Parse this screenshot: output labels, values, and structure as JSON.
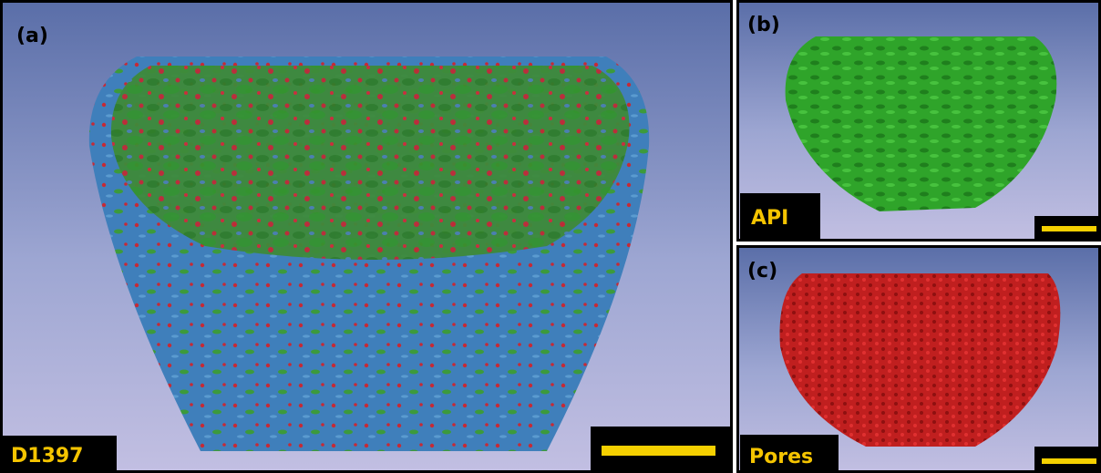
{
  "panels": [
    {
      "label": "(a)",
      "caption": "D1397"
    },
    {
      "label": "(b)",
      "caption": "API"
    },
    {
      "label": "(c)",
      "caption": "Pores"
    }
  ]
}
